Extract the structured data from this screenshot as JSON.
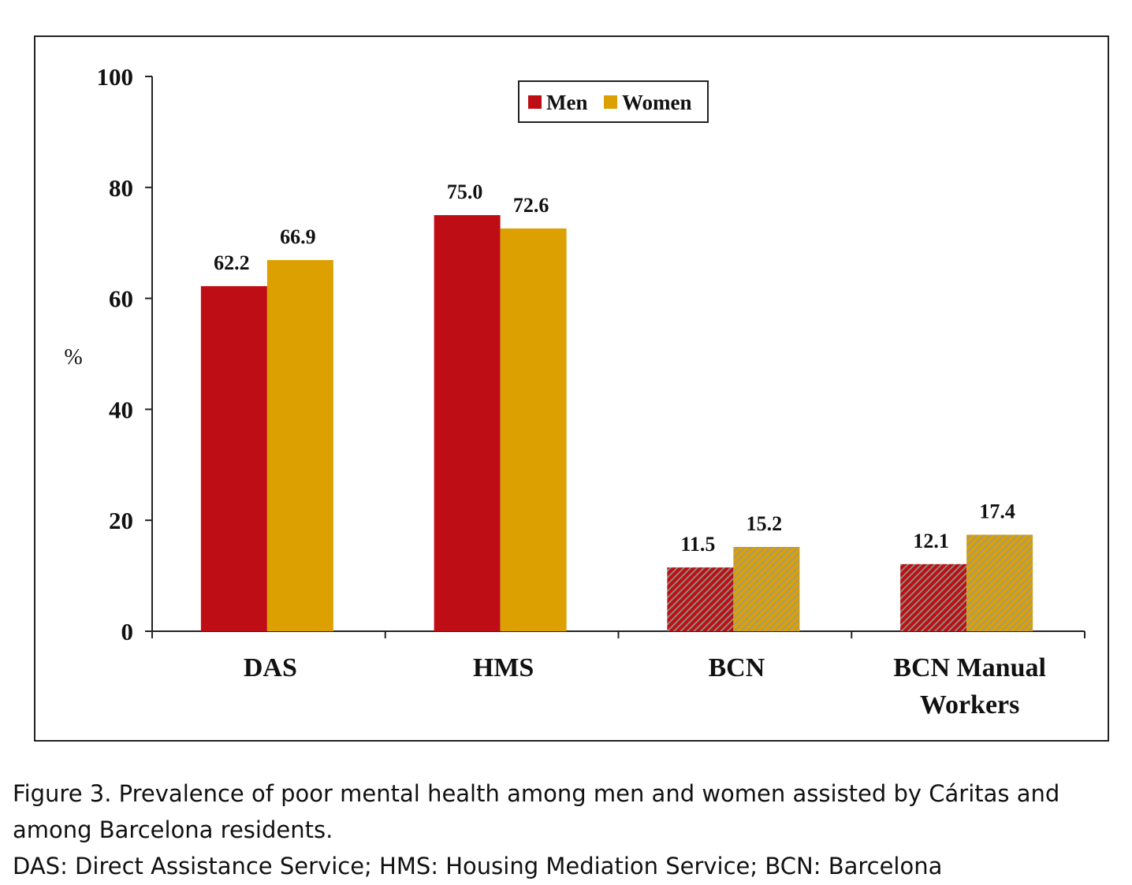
{
  "chart_data": {
    "type": "bar",
    "categories": [
      [
        "DAS"
      ],
      [
        "HMS"
      ],
      [
        "BCN"
      ],
      [
        "BCN Manual",
        "Workers"
      ]
    ],
    "series": [
      {
        "name": "Men",
        "values": [
          62.2,
          75.0,
          11.5,
          12.1
        ],
        "color": "#bf0d15"
      },
      {
        "name": "Women",
        "values": [
          66.9,
          72.6,
          15.2,
          17.4
        ],
        "color": "#dca000"
      }
    ],
    "data_labels": [
      [
        "62.2",
        "75.0",
        "11.5",
        "12.1"
      ],
      [
        "66.9",
        "72.6",
        "15.2",
        "17.4"
      ]
    ],
    "hatched_categories": [
      2,
      3
    ],
    "ylabel": "%",
    "ylim": [
      0,
      100
    ],
    "yticks": [
      0,
      20,
      40,
      60,
      80,
      100
    ],
    "grid": false,
    "legend_position": "top-center"
  },
  "caption": {
    "title_line1": "Figure  3.  Prevalence of poor mental health among men and women assisted by Cáritas and",
    "title_line2": "among Barcelona residents.",
    "note": "DAS: Direct Assistance Service; HMS: Housing Mediation Service; BCN: Barcelona"
  }
}
